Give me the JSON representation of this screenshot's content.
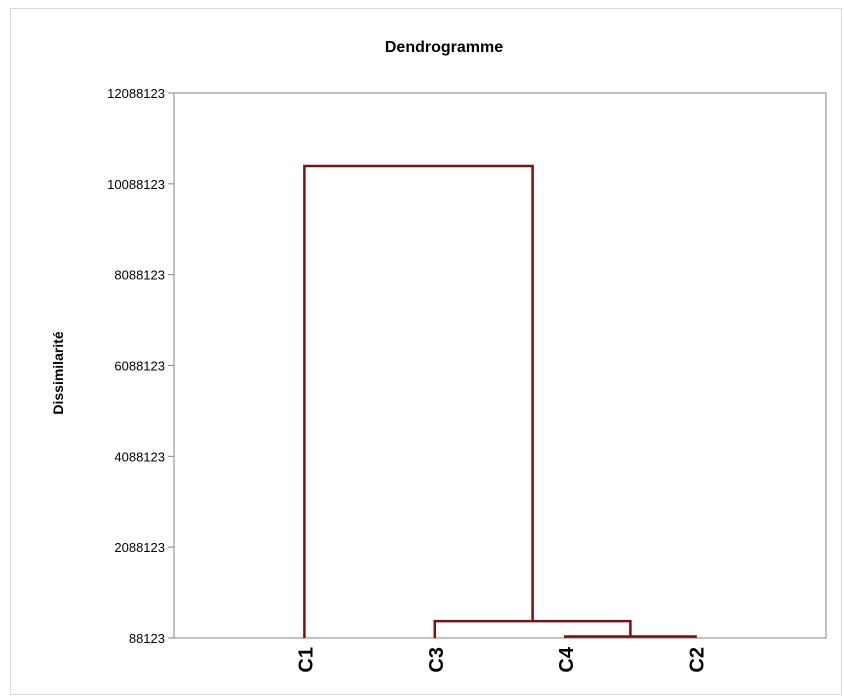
{
  "chart_data": {
    "type": "dendrogram",
    "title": "Dendrogramme",
    "ylabel": "Dissimilarité",
    "xlabel": "",
    "ylim": [
      88123,
      12088123
    ],
    "yticks": [
      88123,
      2088123,
      4088123,
      6088123,
      8088123,
      10088123,
      12088123
    ],
    "leaves": [
      "C1",
      "C3",
      "C4",
      "C2"
    ],
    "merges": [
      {
        "left": "C4",
        "right": "C2",
        "height": 120000
      },
      {
        "left": "C3",
        "right": "C4+C2",
        "height": 460000
      },
      {
        "left": "C1",
        "right": "C3+C4+C2",
        "height": 10480000
      }
    ],
    "colors": {
      "link": "#7b1113",
      "axis": "#868686",
      "text": "#000000"
    },
    "grid": false,
    "legend": "none"
  }
}
